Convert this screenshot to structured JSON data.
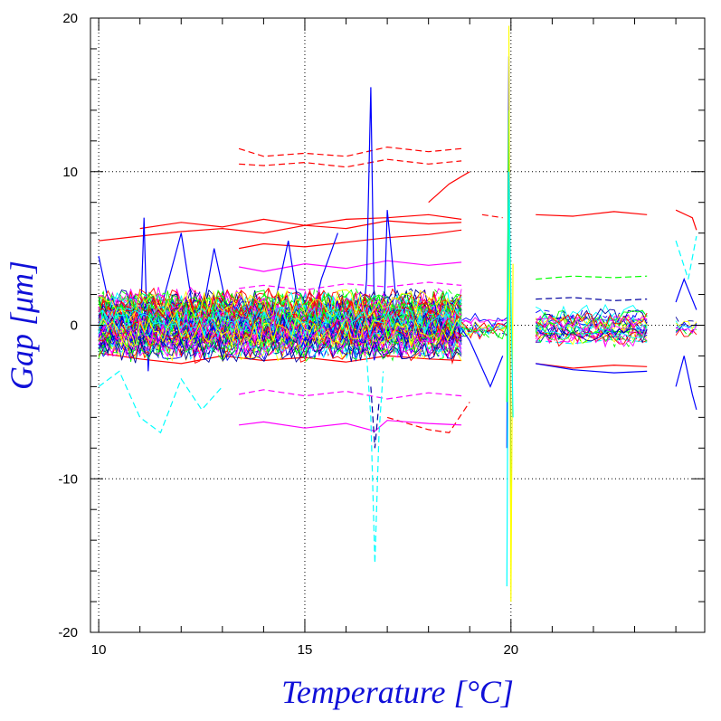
{
  "chart_data": {
    "type": "line",
    "title": "",
    "xlabel": "Temperature [°C]",
    "ylabel": "Gap [μm]",
    "xlim": [
      9.8,
      24.7
    ],
    "ylim": [
      -20,
      20
    ],
    "xticks": [
      10,
      15,
      20
    ],
    "yticks": [
      -20,
      -10,
      0,
      10,
      20
    ],
    "x_tick_labels": [
      "10",
      "15",
      "20"
    ],
    "y_tick_labels": [
      "-20",
      "-10",
      "0",
      "10",
      "20"
    ],
    "x_minor_step": 1,
    "y_minor_step": 2,
    "grid": "dotted at major ticks",
    "legend": "none",
    "series_colors": [
      "#0000ff",
      "#ff0000",
      "#00ffff",
      "#00ff00",
      "#ff00ff",
      "#ffff00",
      "#0000a0"
    ],
    "series": [
      {
        "color": "#ff0000",
        "style": "dashed",
        "x": [
          13.4,
          14.0,
          15.0,
          16.0,
          17.0,
          18.0,
          18.8
        ],
        "y": [
          11.5,
          11.0,
          11.2,
          11.0,
          11.6,
          11.3,
          11.5
        ]
      },
      {
        "color": "#ff0000",
        "style": "dashed",
        "x": [
          13.4,
          14.0,
          15.0,
          16.0,
          17.0,
          18.0,
          18.8
        ],
        "y": [
          10.5,
          10.4,
          10.6,
          10.3,
          10.8,
          10.5,
          10.7
        ]
      },
      {
        "color": "#ff0000",
        "style": "solid",
        "x": [
          10.0,
          11.0,
          12.0,
          13.0,
          14.0,
          15.0,
          16.0,
          17.0,
          18.0,
          18.8
        ],
        "y": [
          5.5,
          5.8,
          6.1,
          6.3,
          6.0,
          6.5,
          6.3,
          6.8,
          6.6,
          6.7
        ]
      },
      {
        "color": "#ff0000",
        "style": "solid",
        "x": [
          11.0,
          12.0,
          13.0,
          14.0,
          15.0,
          16.0,
          17.0,
          18.0,
          18.8
        ],
        "y": [
          6.3,
          6.7,
          6.4,
          6.9,
          6.5,
          6.9,
          7.0,
          7.2,
          6.9
        ]
      },
      {
        "color": "#ff0000",
        "style": "solid",
        "x": [
          13.4,
          14.0,
          15.0,
          16.0,
          17.0,
          18.0,
          18.8
        ],
        "y": [
          5.0,
          5.3,
          5.1,
          5.4,
          5.7,
          5.9,
          6.2
        ]
      },
      {
        "color": "#ff0000",
        "style": "solid",
        "x": [
          18.0,
          18.5,
          19.0
        ],
        "y": [
          8.0,
          9.2,
          10.0
        ]
      },
      {
        "color": "#ff0000",
        "style": "solid",
        "x": [
          20.6,
          21.5,
          22.5,
          23.3
        ],
        "y": [
          7.2,
          7.1,
          7.4,
          7.2
        ]
      },
      {
        "color": "#ff0000",
        "style": "solid",
        "x": [
          24.0,
          24.4,
          24.5
        ],
        "y": [
          7.5,
          7.0,
          6.2
        ]
      },
      {
        "color": "#ff0000",
        "style": "dashed",
        "x": [
          19.3,
          19.8
        ],
        "y": [
          7.2,
          7.0
        ]
      },
      {
        "color": "#ff0000",
        "style": "solid",
        "x": [
          10.0,
          11.0,
          12.0,
          13.0,
          14.0,
          15.0,
          16.0,
          17.0,
          18.0,
          18.8
        ],
        "y": [
          -1.8,
          -2.2,
          -2.5,
          -2.0,
          -2.3,
          -2.1,
          -2.4,
          -2.0,
          -2.2,
          -2.3
        ]
      },
      {
        "color": "#ff0000",
        "style": "dashed",
        "x": [
          17.0,
          18.0,
          18.5,
          19.0
        ],
        "y": [
          -6.0,
          -6.8,
          -7.0,
          -5.0
        ]
      },
      {
        "color": "#ff0000",
        "style": "solid",
        "x": [
          20.6,
          21.5,
          22.5,
          23.3
        ],
        "y": [
          -2.5,
          -2.8,
          -2.6,
          -2.7
        ]
      },
      {
        "color": "#ff00ff",
        "style": "solid",
        "x": [
          13.4,
          14.0,
          15.0,
          16.0,
          16.7,
          17.0,
          18.0,
          18.8
        ],
        "y": [
          -6.5,
          -6.3,
          -6.7,
          -6.4,
          -6.9,
          -6.2,
          -6.4,
          -6.5
        ]
      },
      {
        "color": "#ff00ff",
        "style": "dashed",
        "x": [
          13.4,
          14.0,
          15.0,
          16.0,
          17.0,
          18.0,
          18.8
        ],
        "y": [
          -4.5,
          -4.2,
          -4.6,
          -4.3,
          -4.8,
          -4.4,
          -4.6
        ]
      },
      {
        "color": "#ff00ff",
        "style": "solid",
        "x": [
          13.4,
          14.0,
          15.0,
          16.0,
          17.0,
          18.0,
          18.8
        ],
        "y": [
          3.8,
          3.5,
          4.0,
          3.7,
          4.2,
          3.9,
          4.1
        ]
      },
      {
        "color": "#ff00ff",
        "style": "dashed",
        "x": [
          13.4,
          14.0,
          15.0,
          16.0,
          17.0,
          18.0,
          18.8
        ],
        "y": [
          2.4,
          2.6,
          2.3,
          2.7,
          2.5,
          2.8,
          2.6
        ]
      },
      {
        "color": "#ff00ff",
        "style": "solid",
        "x": [
          20.6,
          21.5,
          22.5,
          23.3
        ],
        "y": [
          0.4,
          0.5,
          0.3,
          0.4
        ]
      },
      {
        "color": "#0000a0",
        "style": "dashed",
        "x": [
          20.6,
          21.5,
          22.5,
          23.3
        ],
        "y": [
          1.7,
          1.8,
          1.6,
          1.7
        ]
      },
      {
        "color": "#0000ff",
        "style": "solid",
        "x": [
          20.6,
          21.5,
          22.5,
          23.3
        ],
        "y": [
          -2.5,
          -2.9,
          -3.1,
          -3.0
        ]
      },
      {
        "color": "#00ff00",
        "style": "dashed",
        "x": [
          20.6,
          21.5,
          22.5,
          23.3
        ],
        "y": [
          3.0,
          3.2,
          3.1,
          3.2
        ]
      },
      {
        "color": "#00ffff",
        "style": "dashed",
        "x": [
          20.6,
          21.5,
          22.5,
          23.3
        ],
        "y": [
          -1.0,
          -1.2,
          -0.9,
          -1.1
        ]
      },
      {
        "color": "#00ff00",
        "style": "solid",
        "x": [
          20.6,
          21.5,
          22.5,
          23.3
        ],
        "y": [
          -0.5,
          -0.6,
          -0.4,
          -0.5
        ]
      },
      {
        "color": "#0000ff",
        "style": "solid",
        "x": [
          24.0,
          24.2,
          24.4,
          24.5
        ],
        "y": [
          -4.0,
          -2.0,
          -4.5,
          -5.5
        ]
      },
      {
        "color": "#0000ff",
        "style": "solid",
        "x": [
          24.0,
          24.2,
          24.5
        ],
        "y": [
          1.5,
          3.0,
          1.0
        ]
      },
      {
        "color": "#00ffff",
        "style": "dashed",
        "x": [
          24.0,
          24.3,
          24.5
        ],
        "y": [
          5.5,
          3.0,
          5.8
        ]
      },
      {
        "color": "#00ffff",
        "style": "dashed",
        "x": [
          10.0,
          10.5,
          11.0,
          11.5,
          12.0,
          12.5,
          13.0
        ],
        "y": [
          -4.0,
          -3.0,
          -6.0,
          -7.0,
          -3.5,
          -5.5,
          -4.0
        ]
      },
      {
        "color": "#0000ff",
        "style": "solid",
        "x": [
          11.0,
          11.1,
          11.2,
          11.3
        ],
        "y": [
          -1.0,
          7.0,
          -3.0,
          2.0
        ]
      },
      {
        "color": "#0000ff",
        "style": "solid",
        "x": [
          16.4,
          16.5,
          16.6,
          16.7,
          16.8,
          16.9
        ],
        "y": [
          0.0,
          3.0,
          15.5,
          -2.0,
          1.0,
          0.0
        ]
      },
      {
        "color": "#00ffff",
        "style": "dashed",
        "x": [
          16.5,
          16.6,
          16.7,
          16.8,
          16.9
        ],
        "y": [
          -2.0,
          -6.0,
          -15.5,
          -7.0,
          -3.0
        ]
      },
      {
        "color": "#0000a0",
        "style": "dashed",
        "x": [
          16.6,
          16.7,
          16.8
        ],
        "y": [
          -4.0,
          -8.0,
          -5.0
        ]
      },
      {
        "color": "#0000ff",
        "style": "solid",
        "x": [
          16.9,
          17.0,
          17.2
        ],
        "y": [
          -1.0,
          7.5,
          2.0
        ]
      },
      {
        "color": "#0000ff",
        "style": "solid",
        "x": [
          19.9,
          19.95,
          20.0
        ],
        "y": [
          -8.0,
          17.5,
          -12.0
        ]
      },
      {
        "color": "#00ff00",
        "style": "solid",
        "x": [
          19.9,
          19.95,
          20.0
        ],
        "y": [
          -5.0,
          14.0,
          -15.0
        ]
      },
      {
        "color": "#ffff00",
        "style": "solid",
        "x": [
          19.95,
          20.0,
          20.05
        ],
        "y": [
          19.5,
          -18.0,
          4.0
        ]
      },
      {
        "color": "#00ffff",
        "style": "solid",
        "x": [
          19.9,
          19.95,
          20.05
        ],
        "y": [
          -17.0,
          10.0,
          -6.0
        ]
      },
      {
        "color": "#0000ff",
        "style": "solid",
        "x": [
          10.0,
          10.2,
          10.4
        ],
        "y": [
          4.5,
          2.0,
          0.5
        ]
      },
      {
        "color": "#0000ff",
        "style": "solid",
        "x": [
          18.5,
          19.0,
          19.5,
          19.8
        ],
        "y": [
          1.0,
          -1.0,
          -4.0,
          -2.0
        ]
      },
      {
        "color": "#0000ff",
        "style": "solid",
        "x": [
          11.5,
          12.0,
          12.4,
          12.8,
          13.2
        ],
        "y": [
          1.0,
          6.0,
          -1.0,
          5.0,
          0.0
        ]
      },
      {
        "color": "#0000ff",
        "style": "solid",
        "x": [
          14.2,
          14.6,
          15.0,
          15.4,
          15.8
        ],
        "y": [
          0.5,
          5.5,
          -1.5,
          3.0,
          6.0
        ]
      }
    ]
  }
}
